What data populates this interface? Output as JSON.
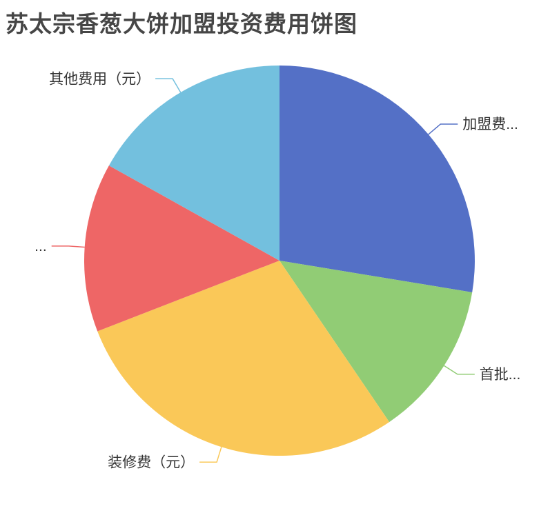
{
  "page": {
    "background_color": "#ffffff"
  },
  "chart_data": {
    "type": "pie",
    "title": "苏太宗香葱大饼加盟投资费用饼图",
    "title_color": "#464646",
    "label_color": "#333333",
    "legend_position": "none",
    "label_layout": "outside-with-leader-lines",
    "center": [
      405,
      378
    ],
    "radius": 283,
    "leader_elbow_length": 23,
    "leader_horizontal_length": 25,
    "label_font_size": 21,
    "start_angle_deg_from_12_oclock": 0,
    "slices": [
      {
        "label": "加盟费...",
        "percent": 27.6,
        "color": "#5470C6"
      },
      {
        "label": "首批...",
        "percent": 12.9,
        "color": "#91CC75"
      },
      {
        "label": "装修费（元）",
        "percent": 28.6,
        "color": "#FAC858"
      },
      {
        "label": "...",
        "percent": 14.0,
        "color": "#EE6666"
      },
      {
        "label": "其他费用（元）",
        "percent": 16.9,
        "color": "#73C0DE"
      }
    ]
  }
}
